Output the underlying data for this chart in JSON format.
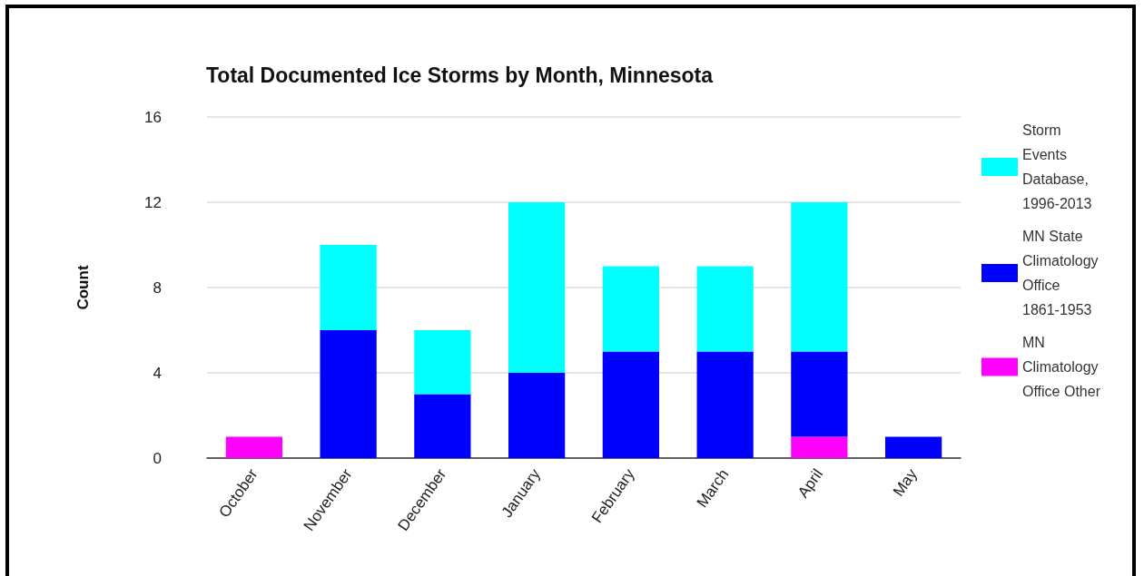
{
  "chart_data": {
    "type": "bar",
    "title": "Total Documented Ice Storms by Month, Minnesota",
    "ylabel": "Count",
    "categories": [
      "October",
      "November",
      "December",
      "January",
      "February",
      "March",
      "April",
      "May"
    ],
    "series": [
      {
        "name": "MN Climatology Office Other",
        "color": "#ff00ff",
        "values": [
          1,
          0,
          0,
          0,
          0,
          0,
          1,
          0
        ]
      },
      {
        "name": "MN State Climatology Office 1861-1953",
        "color": "#0000ff",
        "values": [
          0,
          6,
          3,
          4,
          5,
          5,
          4,
          1
        ]
      },
      {
        "name": "Storm Events Database, 1996-2013",
        "color": "#00ffff",
        "values": [
          0,
          4,
          3,
          8,
          4,
          4,
          7,
          0
        ]
      }
    ],
    "stacked": true,
    "ylim": [
      0,
      16
    ],
    "yticks": [
      0,
      4,
      8,
      12,
      16
    ],
    "grid": "y",
    "legend": "right"
  }
}
